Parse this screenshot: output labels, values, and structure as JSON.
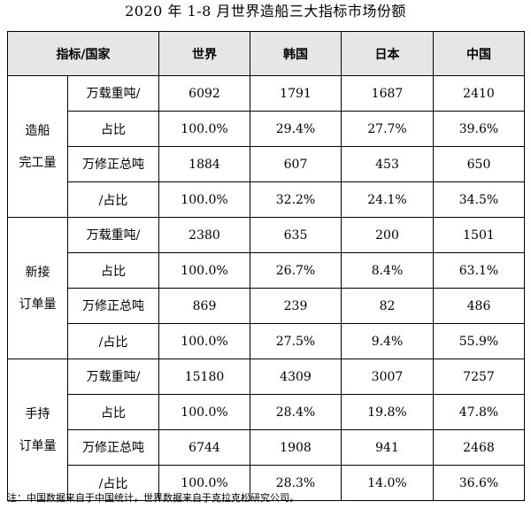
{
  "title": "2020 年 1-8 月世界造船三大指标市场份额",
  "header": {
    "indicator_country": "指标/国家",
    "columns": [
      "世界",
      "韩国",
      "日本",
      "中国"
    ]
  },
  "sections": [
    {
      "name_line1": "造船",
      "name_line2": "完工量",
      "units": [
        {
          "line1": "万载重吨/",
          "line2": "占比",
          "values": [
            "6092",
            "1791",
            "1687",
            "2410"
          ],
          "shares": [
            "100.0%",
            "29.4%",
            "27.7%",
            "39.6%"
          ]
        },
        {
          "line1": "万修正总吨",
          "line2": "/占比",
          "values": [
            "1884",
            "607",
            "453",
            "650"
          ],
          "shares": [
            "100.0%",
            "32.2%",
            "24.1%",
            "34.5%"
          ]
        }
      ]
    },
    {
      "name_line1": "新接",
      "name_line2": "订单量",
      "units": [
        {
          "line1": "万载重吨/",
          "line2": "占比",
          "values": [
            "2380",
            "635",
            "200",
            "1501"
          ],
          "shares": [
            "100.0%",
            "26.7%",
            "8.4%",
            "63.1%"
          ]
        },
        {
          "line1": "万修正总吨",
          "line2": "/占比",
          "values": [
            "869",
            "239",
            "82",
            "486"
          ],
          "shares": [
            "100.0%",
            "27.5%",
            "9.4%",
            "55.9%"
          ]
        }
      ]
    },
    {
      "name_line1": "手持",
      "name_line2": "订单量",
      "units": [
        {
          "line1": "万载重吨/",
          "line2": "占比",
          "values": [
            "15180",
            "4309",
            "3007",
            "7257"
          ],
          "shares": [
            "100.0%",
            "28.4%",
            "19.8%",
            "47.8%"
          ]
        },
        {
          "line1": "万修正总吨",
          "line2": "/占比",
          "values": [
            "6744",
            "1908",
            "941",
            "2468"
          ],
          "shares": [
            "100.0%",
            "28.3%",
            "14.0%",
            "36.6%"
          ]
        }
      ]
    }
  ],
  "note": "注：中国数据来自于中国统计，世界数据来自于克拉克松研究公司。"
}
